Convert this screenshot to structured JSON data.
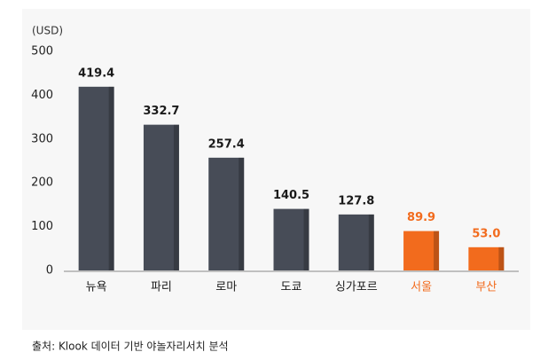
{
  "chart_data": {
    "type": "bar",
    "y_label": "(USD)",
    "categories": [
      "뉴욕",
      "파리",
      "로마",
      "도쿄",
      "싱가포르",
      "서울",
      "부산"
    ],
    "values": [
      419.4,
      332.7,
      257.4,
      140.5,
      127.8,
      89.9,
      53
    ],
    "value_labels": [
      "419.4",
      "332.7",
      "257.4",
      "140.5",
      "127.8",
      "89.9",
      "53.0"
    ],
    "colors": [
      "#474c57",
      "#474c57",
      "#474c57",
      "#474c57",
      "#474c57",
      "#f26b1d",
      "#f26b1d"
    ],
    "ylim": [
      0,
      500
    ],
    "yticks": [
      0,
      100,
      200,
      300,
      400,
      500
    ],
    "grid": false,
    "source": "출처: Klook 데이터 기반 야놀자리서치 분석"
  }
}
